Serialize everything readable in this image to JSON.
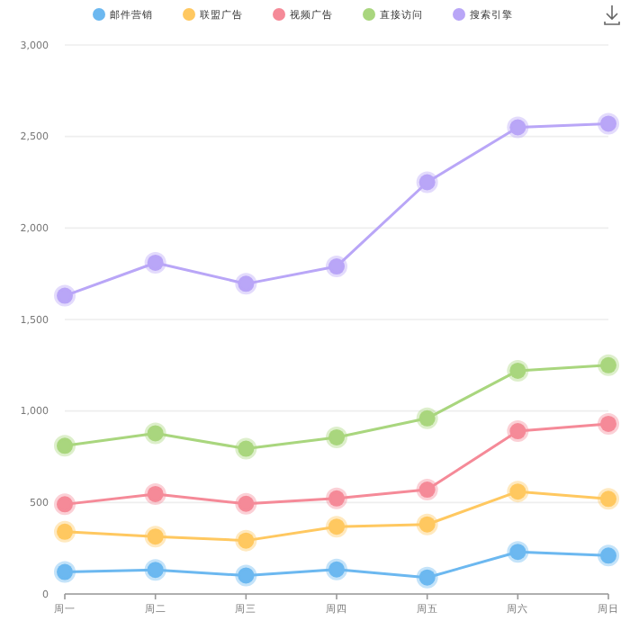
{
  "chart_data": {
    "type": "line",
    "categories": [
      "周一",
      "周二",
      "周三",
      "周四",
      "周五",
      "周六",
      "周日"
    ],
    "series": [
      {
        "name": "邮件营销",
        "color": "#6cb8f0",
        "values": [
          120,
          132,
          101,
          134,
          90,
          230,
          210
        ]
      },
      {
        "name": "联盟广告",
        "color": "#ffc860",
        "values": [
          340,
          314,
          292,
          368,
          380,
          560,
          520
        ]
      },
      {
        "name": "视频广告",
        "color": "#f58a98",
        "values": [
          490,
          546,
          493,
          522,
          570,
          890,
          930
        ]
      },
      {
        "name": "直接访问",
        "color": "#a9d67e",
        "values": [
          810,
          878,
          794,
          856,
          960,
          1220,
          1250
        ]
      },
      {
        "name": "搜索引擎",
        "color": "#b9a6f7",
        "values": [
          1630,
          1810,
          1695,
          1790,
          2250,
          2550,
          2570
        ]
      }
    ],
    "ylim": [
      0,
      3000
    ],
    "yticks": [
      {
        "value": 0,
        "label": "0"
      },
      {
        "value": 500,
        "label": "500"
      },
      {
        "value": 1000,
        "label": "1,000"
      },
      {
        "value": 1500,
        "label": "1,500"
      },
      {
        "value": 2000,
        "label": "2,000"
      },
      {
        "value": 2500,
        "label": "2,500"
      },
      {
        "value": 3000,
        "label": "3,000"
      }
    ],
    "grid": "y",
    "legend": "top",
    "marker": "circle",
    "line_style": "solid"
  }
}
